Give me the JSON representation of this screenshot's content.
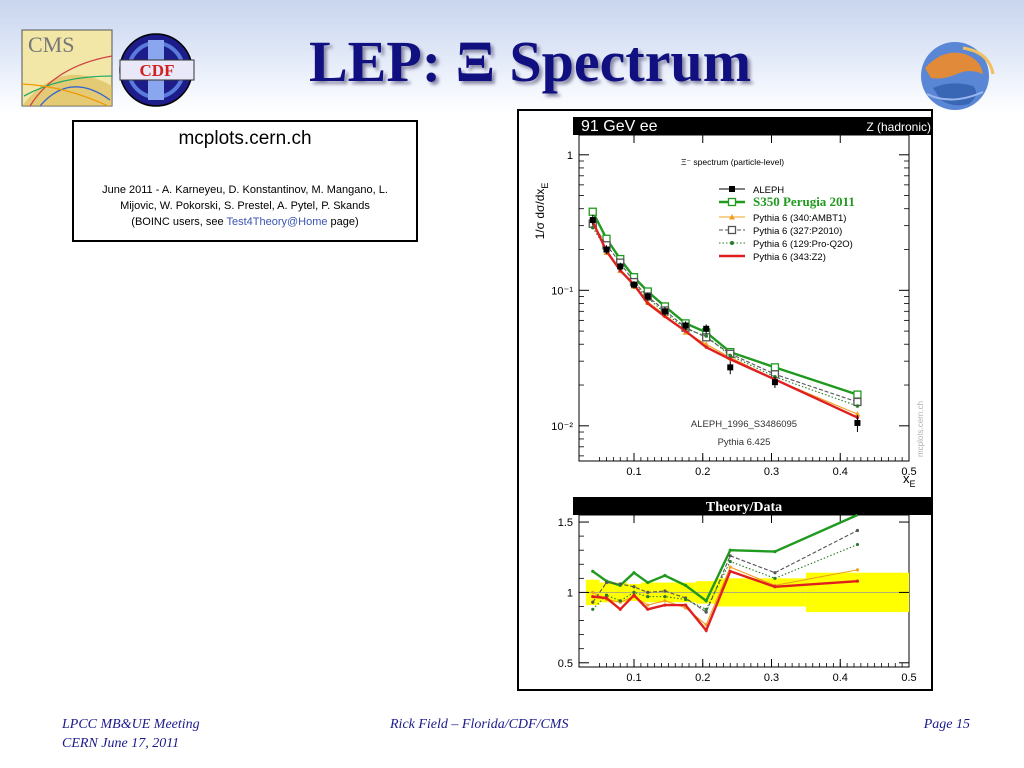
{
  "slide": {
    "title": "LEP: Ξ Spectrum",
    "logos": {
      "cms": {
        "label": "CMS"
      },
      "cdf": {
        "label": "CDF"
      },
      "right": {
        "label": ""
      }
    }
  },
  "credits": {
    "site": "mcplots.cern.ch",
    "line1": "June 2011 - A. Karneyeu, D. Konstantinov, M. Mangano, L.",
    "line2": "Mijovic, W. Pokorski, S. Prestel, A. Pytel, P. Skands",
    "line3_pre": "(BOINC users, see ",
    "line3_link": "Test4Theory@Home",
    "line3_post": " page)"
  },
  "footer": {
    "left_line1": "LPCC MB&UE Meeting",
    "left_line2": "CERN June 17, 2011",
    "center": "Rick Field – Florida/CDF/CMS",
    "right": "Page 15"
  },
  "chart_data": [
    {
      "type": "line",
      "header_left": "91 GeV ee",
      "header_right": "Z (hadronic)",
      "title": "Ξ⁻ spectrum (particle-level)",
      "xlabel": "x",
      "xlabel_sub": "E",
      "ylabel": "1/σ  dσ/dx",
      "ylabel_sub": "E",
      "yscale": "log",
      "xlim": [
        0.02,
        0.5
      ],
      "ylim": [
        0.0055,
        1.4
      ],
      "xticks": [
        0.1,
        0.2,
        0.3,
        0.4,
        0.5
      ],
      "xtick_labels": [
        "0.1",
        "0.2",
        "0.3",
        "0.4",
        "0.5"
      ],
      "yticks": [
        1,
        0.1,
        0.01
      ],
      "ytick_labels": [
        "1",
        "10⁻¹",
        "10⁻²"
      ],
      "annotations": [
        "ALEPH_1996_S3486095",
        "Pythia 6.425"
      ],
      "watermark": "mcplots.cern.ch",
      "legend_position": "top-right",
      "x": [
        0.04,
        0.06,
        0.08,
        0.1,
        0.12,
        0.145,
        0.175,
        0.205,
        0.24,
        0.305,
        0.425
      ],
      "data": {
        "name": "ALEPH",
        "values": [
          0.33,
          0.2,
          0.15,
          0.11,
          0.09,
          0.07,
          0.055,
          0.052,
          0.027,
          0.021,
          0.0105
        ],
        "errors": [
          0.03,
          0.015,
          0.01,
          0.007,
          0.006,
          0.005,
          0.004,
          0.004,
          0.003,
          0.002,
          0.0015
        ]
      },
      "series": [
        {
          "name": "S350 Perugia 2011",
          "color": "#1f9a1f",
          "style": "solid-thick-square",
          "values": [
            0.38,
            0.24,
            0.17,
            0.125,
            0.098,
            0.076,
            0.057,
            0.049,
            0.035,
            0.027,
            0.017
          ]
        },
        {
          "name": "Pythia 6 (340:AMBT1)",
          "color": "#f0a020",
          "style": "solid-triangle",
          "values": [
            0.33,
            0.19,
            0.14,
            0.107,
            0.082,
            0.066,
            0.049,
            0.04,
            0.032,
            0.022,
            0.0122
          ]
        },
        {
          "name": "Pythia 6 (327:P2010)",
          "color": "#555555",
          "style": "dashed-open-square",
          "values": [
            0.31,
            0.215,
            0.16,
            0.115,
            0.09,
            0.071,
            0.053,
            0.045,
            0.034,
            0.024,
            0.015
          ]
        },
        {
          "name": "Pythia 6 (129:Pro-Q2O)",
          "color": "#2a7a2a",
          "style": "dotted-star",
          "values": [
            0.29,
            0.2,
            0.14,
            0.11,
            0.088,
            0.068,
            0.052,
            0.046,
            0.033,
            0.023,
            0.014
          ]
        },
        {
          "name": "Pythia 6 (343:Z2)",
          "color": "#e02020",
          "style": "solid-thick",
          "values": [
            0.32,
            0.195,
            0.14,
            0.11,
            0.08,
            0.064,
            0.05,
            0.038,
            0.031,
            0.022,
            0.0115
          ]
        }
      ]
    },
    {
      "type": "line",
      "title": "Theory/Data",
      "xlim": [
        0.02,
        0.5
      ],
      "ylim": [
        0.47,
        1.55
      ],
      "xticks": [
        0.1,
        0.2,
        0.3,
        0.4,
        0.5
      ],
      "xtick_labels": [
        "0.1",
        "0.2",
        "0.3",
        "0.4",
        "0.5"
      ],
      "yticks": [
        0.5,
        1,
        1.5
      ],
      "ytick_labels": [
        "0.5",
        "1",
        "1.5"
      ],
      "x": [
        0.04,
        0.06,
        0.08,
        0.1,
        0.12,
        0.145,
        0.175,
        0.205,
        0.24,
        0.305,
        0.425
      ],
      "data_band": [
        {
          "x0": 0.03,
          "x1": 0.05,
          "lo": 0.91,
          "hi": 1.09
        },
        {
          "x0": 0.05,
          "x1": 0.07,
          "lo": 0.93,
          "hi": 1.07
        },
        {
          "x0": 0.07,
          "x1": 0.09,
          "lo": 0.93,
          "hi": 1.07
        },
        {
          "x0": 0.09,
          "x1": 0.11,
          "lo": 0.94,
          "hi": 1.06
        },
        {
          "x0": 0.11,
          "x1": 0.13,
          "lo": 0.93,
          "hi": 1.07
        },
        {
          "x0": 0.13,
          "x1": 0.16,
          "lo": 0.93,
          "hi": 1.07
        },
        {
          "x0": 0.16,
          "x1": 0.19,
          "lo": 0.93,
          "hi": 1.07
        },
        {
          "x0": 0.19,
          "x1": 0.22,
          "lo": 0.92,
          "hi": 1.08
        },
        {
          "x0": 0.22,
          "x1": 0.26,
          "lo": 0.9,
          "hi": 1.1
        },
        {
          "x0": 0.26,
          "x1": 0.35,
          "lo": 0.9,
          "hi": 1.1
        },
        {
          "x0": 0.35,
          "x1": 0.5,
          "lo": 0.86,
          "hi": 1.14
        }
      ],
      "series": [
        {
          "name": "S350 Perugia 2011",
          "color": "#1f9a1f",
          "style": "solid-thick",
          "values": [
            1.15,
            1.08,
            1.05,
            1.14,
            1.07,
            1.12,
            1.05,
            0.94,
            1.3,
            1.29,
            1.62
          ]
        },
        {
          "name": "Pythia 6 (340:AMBT1)",
          "color": "#f0a020",
          "style": "solid",
          "values": [
            1.0,
            0.95,
            0.93,
            0.97,
            0.91,
            0.94,
            0.89,
            0.77,
            1.18,
            1.05,
            1.16
          ]
        },
        {
          "name": "Pythia 6 (327:P2010)",
          "color": "#555555",
          "style": "dashed",
          "values": [
            0.93,
            1.07,
            1.06,
            1.04,
            1.0,
            1.01,
            0.96,
            0.86,
            1.26,
            1.14,
            1.44
          ]
        },
        {
          "name": "Pythia 6 (129:Pro-Q2O)",
          "color": "#2a7a2a",
          "style": "dotted",
          "values": [
            0.88,
            0.98,
            0.94,
            1.0,
            0.97,
            0.97,
            0.95,
            0.88,
            1.22,
            1.1,
            1.34
          ]
        },
        {
          "name": "Pythia 6 (343:Z2)",
          "color": "#e02020",
          "style": "solid-thick",
          "values": [
            0.97,
            0.96,
            0.88,
            0.98,
            0.88,
            0.91,
            0.91,
            0.73,
            1.15,
            1.04,
            1.08
          ]
        }
      ]
    }
  ]
}
